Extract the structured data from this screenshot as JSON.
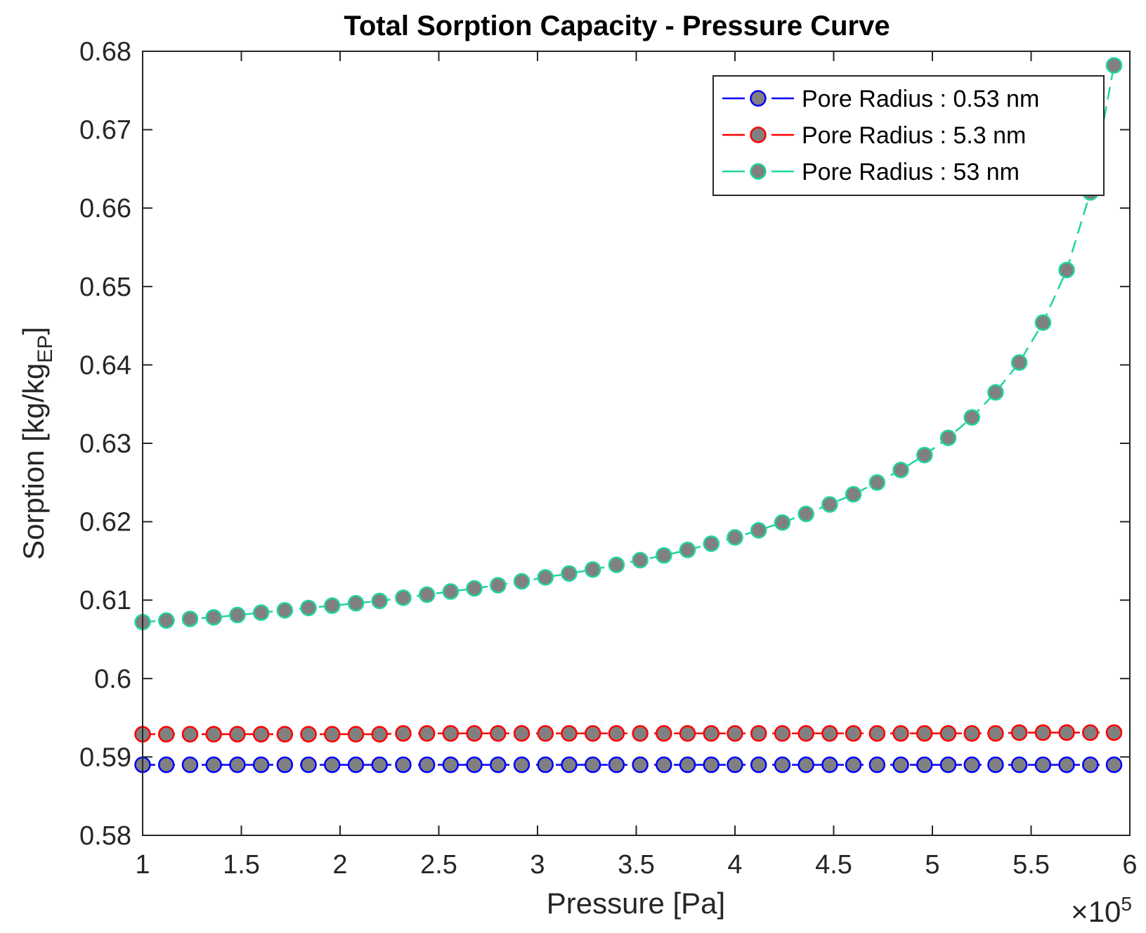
{
  "chart_data": {
    "type": "line",
    "title": "Total Sorption Capacity - Pressure Curve",
    "xlabel": "Pressure  [Pa]",
    "ylabel": "Sorption [kg/kg",
    "ylabel_sub": "EP",
    "ylabel_end": "]",
    "x_exponent_base": "×10",
    "x_exponent_power": "5",
    "xlim": [
      1,
      6
    ],
    "ylim": [
      0.58,
      0.68
    ],
    "xticks": [
      1,
      1.5,
      2,
      2.5,
      3,
      3.5,
      4,
      4.5,
      5,
      5.5,
      6
    ],
    "xtick_labels": [
      "1",
      "1.5",
      "2",
      "2.5",
      "3",
      "3.5",
      "4",
      "4.5",
      "5",
      "5.5",
      "6"
    ],
    "yticks": [
      0.58,
      0.59,
      0.6,
      0.61,
      0.62,
      0.63,
      0.64,
      0.65,
      0.66,
      0.67,
      0.68
    ],
    "ytick_labels": [
      "0.58",
      "0.59",
      "0.6",
      "0.61",
      "0.62",
      "0.63",
      "0.64",
      "0.65",
      "0.66",
      "0.67",
      "0.68"
    ],
    "grid": false,
    "legend_position": "top-right",
    "marker_fill": "#808080",
    "x": [
      1.0,
      1.12,
      1.24,
      1.36,
      1.48,
      1.6,
      1.72,
      1.84,
      1.96,
      2.08,
      2.2,
      2.32,
      2.44,
      2.56,
      2.68,
      2.8,
      2.92,
      3.04,
      3.16,
      3.28,
      3.4,
      3.52,
      3.64,
      3.76,
      3.88,
      4.0,
      4.12,
      4.24,
      4.36,
      4.48,
      4.6,
      4.72,
      4.84,
      4.96,
      5.08,
      5.2,
      5.32,
      5.44,
      5.56,
      5.68,
      5.8,
      5.92
    ],
    "series": [
      {
        "name": "Pore Radius : 0.53 nm",
        "color": "#0000ff",
        "values": [
          0.589,
          0.589,
          0.589,
          0.589,
          0.589,
          0.589,
          0.589,
          0.589,
          0.589,
          0.589,
          0.589,
          0.589,
          0.589,
          0.589,
          0.589,
          0.589,
          0.589,
          0.589,
          0.589,
          0.589,
          0.589,
          0.589,
          0.589,
          0.589,
          0.589,
          0.589,
          0.589,
          0.589,
          0.589,
          0.589,
          0.589,
          0.589,
          0.589,
          0.589,
          0.589,
          0.589,
          0.589,
          0.589,
          0.589,
          0.589,
          0.589,
          0.589
        ]
      },
      {
        "name": "Pore Radius : 5.3 nm",
        "color": "#ff0000",
        "values": [
          0.5929,
          0.5929,
          0.5929,
          0.5929,
          0.5929,
          0.5929,
          0.5929,
          0.5929,
          0.5929,
          0.5929,
          0.5929,
          0.593,
          0.593,
          0.593,
          0.593,
          0.593,
          0.593,
          0.593,
          0.593,
          0.593,
          0.593,
          0.593,
          0.593,
          0.593,
          0.593,
          0.593,
          0.593,
          0.593,
          0.593,
          0.593,
          0.593,
          0.593,
          0.593,
          0.593,
          0.593,
          0.593,
          0.593,
          0.5931,
          0.5931,
          0.5931,
          0.5931,
          0.5931
        ]
      },
      {
        "name": "Pore Radius : 53 nm",
        "color": "#1fd4a0",
        "values": [
          0.6072,
          0.6074,
          0.6076,
          0.6078,
          0.6081,
          0.6084,
          0.6087,
          0.609,
          0.6093,
          0.6096,
          0.6099,
          0.6103,
          0.6107,
          0.6111,
          0.6115,
          0.6119,
          0.6124,
          0.6129,
          0.6134,
          0.6139,
          0.6145,
          0.6151,
          0.6157,
          0.6164,
          0.6172,
          0.618,
          0.6189,
          0.6199,
          0.621,
          0.6222,
          0.6235,
          0.625,
          0.6266,
          0.6285,
          0.6307,
          0.6333,
          0.6365,
          0.6403,
          0.6454,
          0.6521,
          0.662,
          0.6782
        ]
      }
    ]
  }
}
